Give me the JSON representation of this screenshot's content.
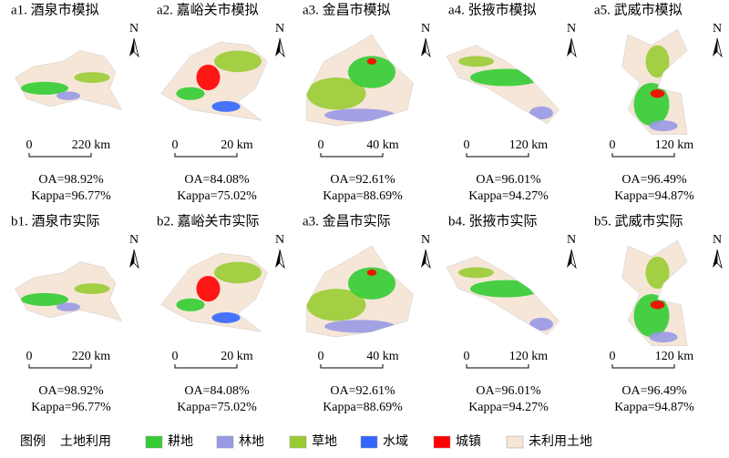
{
  "panels": [
    {
      "title": "a1. 酒泉市模拟",
      "scale_start": "0",
      "scale_end": "220 km",
      "oa": "OA=98.92%",
      "kappa": "Kappa=96.77%"
    },
    {
      "title": "a2. 嘉峪关市模拟",
      "scale_start": "0",
      "scale_end": "20 km",
      "oa": "OA=84.08%",
      "kappa": "Kappa=75.02%"
    },
    {
      "title": "a3. 金昌市模拟",
      "scale_start": "0",
      "scale_end": "40 km",
      "oa": "OA=92.61%",
      "kappa": "Kappa=88.69%"
    },
    {
      "title": "a4. 张掖市模拟",
      "scale_start": "0",
      "scale_end": "120 km",
      "oa": "OA=96.01%",
      "kappa": "Kappa=94.27%"
    },
    {
      "title": "a5. 武威市模拟",
      "scale_start": "0",
      "scale_end": "120 km",
      "oa": "OA=96.49%",
      "kappa": "Kappa=94.87%"
    },
    {
      "title": "b1. 酒泉市实际",
      "scale_start": "0",
      "scale_end": "220 km",
      "oa": "OA=98.92%",
      "kappa": "Kappa=96.77%"
    },
    {
      "title": "b2. 嘉峪关市实际",
      "scale_start": "0",
      "scale_end": "20 km",
      "oa": "OA=84.08%",
      "kappa": "Kappa=75.02%"
    },
    {
      "title": "a3. 金昌市实际",
      "scale_start": "0",
      "scale_end": "40 km",
      "oa": "OA=92.61%",
      "kappa": "Kappa=88.69%"
    },
    {
      "title": "b4. 张掖市实际",
      "scale_start": "0",
      "scale_end": "120 km",
      "oa": "OA=96.01%",
      "kappa": "Kappa=94.27%"
    },
    {
      "title": "b5. 武威市实际",
      "scale_start": "0",
      "scale_end": "120 km",
      "oa": "OA=96.49%",
      "kappa": "Kappa=94.87%"
    }
  ],
  "north_label": "N",
  "legend": {
    "title": "图例",
    "subtitle": "土地利用",
    "items": [
      {
        "label": "耕地",
        "color": "#33cc33"
      },
      {
        "label": "林地",
        "color": "#9999e6"
      },
      {
        "label": "草地",
        "color": "#99cc33"
      },
      {
        "label": "水域",
        "color": "#3366ff"
      },
      {
        "label": "城镇",
        "color": "#ff0000"
      },
      {
        "label": "未利用土地",
        "color": "#f5e6d8"
      }
    ]
  }
}
